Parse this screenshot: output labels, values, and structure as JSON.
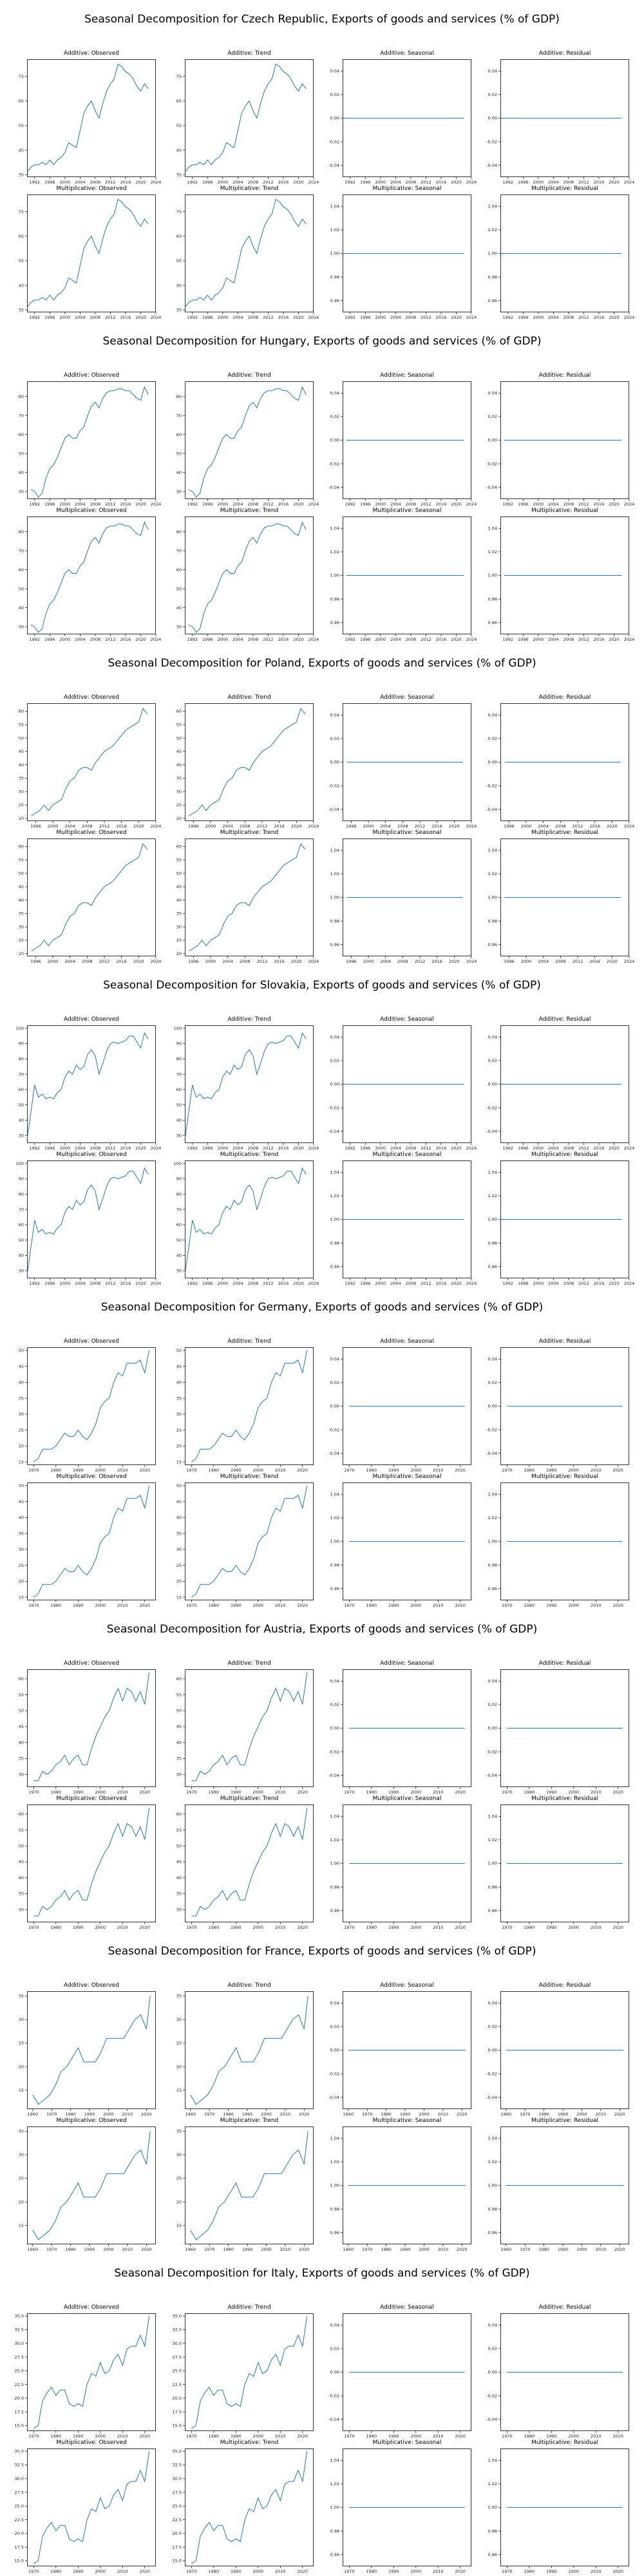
{
  "colors": {
    "line": "#1f77b4",
    "axis": "#000000"
  },
  "panel_titles": [
    "Additive: Observed",
    "Additive: Trend",
    "Additive: Seasonal",
    "Additive: Residual",
    "Multiplicative: Observed",
    "Multiplicative: Trend",
    "Multiplicative: Seasonal",
    "Multiplicative: Residual"
  ],
  "chart_data": [
    {
      "type": "line",
      "title": "Seasonal Decomposition for Czech Republic, Exports of goods and services (% of GDP)",
      "x": [
        1990,
        1991,
        1992,
        1993,
        1994,
        1995,
        1996,
        1997,
        1998,
        1999,
        2000,
        2001,
        2002,
        2003,
        2004,
        2005,
        2006,
        2007,
        2008,
        2009,
        2010,
        2011,
        2012,
        2013,
        2014,
        2015,
        2016,
        2017,
        2018,
        2019,
        2020,
        2021,
        2022
      ],
      "observed": [
        36,
        38,
        39,
        39,
        40,
        39,
        41,
        39,
        41,
        42,
        44,
        48,
        47,
        46,
        53,
        60,
        63,
        65,
        61,
        58,
        64,
        69,
        72,
        74,
        80,
        79,
        77,
        76,
        74,
        71,
        69,
        72,
        70
      ],
      "xticks": [
        "1992",
        "1996",
        "2000",
        "2004",
        "2008",
        "2012",
        "2016",
        "2020",
        "2024"
      ],
      "xlim": [
        1990,
        2024
      ],
      "obs_ylim": [
        34,
        82
      ],
      "obs_yticks": [
        "35",
        "45",
        "55",
        "65",
        "75"
      ],
      "yticks_seasonal_add": [
        "0.04",
        "0.02",
        "0.00",
        "-0.02",
        "-0.04"
      ],
      "yticks_seasonal_mul": [
        "1.04",
        "1.02",
        "1.00",
        "0.98",
        "0.96"
      ]
    },
    {
      "type": "line",
      "title": "Seasonal Decomposition for Hungary, Exports of goods and services (% of GDP)",
      "x": [
        1991,
        1992,
        1993,
        1994,
        1995,
        1996,
        1997,
        1998,
        1999,
        2000,
        2001,
        2002,
        2003,
        2004,
        2005,
        2006,
        2007,
        2008,
        2009,
        2010,
        2011,
        2012,
        2013,
        2014,
        2015,
        2016,
        2017,
        2018,
        2019,
        2020,
        2021,
        2022
      ],
      "observed": [
        31,
        30,
        27,
        29,
        37,
        42,
        44,
        48,
        53,
        58,
        60,
        58,
        58,
        62,
        64,
        70,
        75,
        77,
        74,
        79,
        82,
        83,
        83,
        84,
        84,
        83,
        83,
        81,
        79,
        78,
        85,
        81
      ],
      "xticks": [
        "1992",
        "1996",
        "2000",
        "2004",
        "2008",
        "2012",
        "2016",
        "2020",
        "2024"
      ],
      "xlim": [
        1990,
        2024
      ],
      "obs_ylim": [
        26,
        88
      ],
      "obs_yticks": [
        "30",
        "40",
        "50",
        "60",
        "70",
        "80"
      ],
      "yticks_seasonal_add": [
        "0.04",
        "0.02",
        "0.00",
        "-0.02",
        "-0.04"
      ],
      "yticks_seasonal_mul": [
        "1.04",
        "1.02",
        "1.00",
        "0.98",
        "0.96"
      ]
    },
    {
      "type": "line",
      "title": "Seasonal Decomposition for Poland, Exports of goods and services (% of GDP)",
      "x": [
        1995,
        1996,
        1997,
        1998,
        1999,
        2000,
        2001,
        2002,
        2003,
        2004,
        2005,
        2006,
        2007,
        2008,
        2009,
        2010,
        2011,
        2012,
        2013,
        2014,
        2015,
        2016,
        2017,
        2018,
        2019,
        2020,
        2021,
        2022
      ],
      "observed": [
        21,
        22,
        23,
        25,
        23,
        25,
        26,
        27,
        31,
        34,
        35,
        38,
        39,
        39,
        38,
        41,
        43,
        45,
        46,
        47,
        49,
        51,
        53,
        54,
        55,
        56,
        61,
        59
      ],
      "xticks": [
        "1996",
        "2000",
        "2004",
        "2008",
        "2012",
        "2016",
        "2020",
        "2024"
      ],
      "xlim": [
        1994,
        2024
      ],
      "obs_ylim": [
        19,
        63
      ],
      "obs_yticks": [
        "20",
        "25",
        "30",
        "35",
        "40",
        "45",
        "50",
        "55",
        "60"
      ],
      "yticks_seasonal_add": [
        "0.04",
        "0.02",
        "0.00",
        "-0.02",
        "-0.04"
      ],
      "yticks_seasonal_mul": [
        "1.04",
        "1.02",
        "1.00",
        "0.98",
        "0.96"
      ]
    },
    {
      "type": "line",
      "title": "Seasonal Decomposition for Slovakia, Exports of goods and services (% of GDP)",
      "x": [
        1990,
        1991,
        1992,
        1993,
        1994,
        1995,
        1996,
        1997,
        1998,
        1999,
        2000,
        2001,
        2002,
        2003,
        2004,
        2005,
        2006,
        2007,
        2008,
        2009,
        2010,
        2011,
        2012,
        2013,
        2014,
        2015,
        2016,
        2017,
        2018,
        2019,
        2020,
        2021,
        2022
      ],
      "observed": [
        27,
        45,
        63,
        55,
        57,
        54,
        55,
        54,
        58,
        60,
        68,
        72,
        70,
        76,
        73,
        75,
        83,
        86,
        82,
        70,
        77,
        85,
        90,
        91,
        90,
        91,
        92,
        95,
        95,
        91,
        87,
        97,
        93
      ],
      "xticks": [
        "1992",
        "1996",
        "2000",
        "2004",
        "2008",
        "2012",
        "2016",
        "2020",
        "2024"
      ],
      "xlim": [
        1990,
        2024
      ],
      "obs_ylim": [
        25,
        102
      ],
      "obs_yticks": [
        "30",
        "40",
        "50",
        "60",
        "70",
        "80",
        "90",
        "100"
      ],
      "yticks_seasonal_add": [
        "0.04",
        "0.02",
        "0.00",
        "-0.02",
        "-0.04"
      ],
      "yticks_seasonal_mul": [
        "1.04",
        "1.02",
        "1.00",
        "0.98",
        "0.96"
      ]
    },
    {
      "type": "line",
      "title": "Seasonal Decomposition for Germany, Exports of goods and services (% of GDP)",
      "x": [
        1970,
        1972,
        1974,
        1976,
        1978,
        1980,
        1982,
        1984,
        1986,
        1988,
        1990,
        1992,
        1994,
        1996,
        1998,
        2000,
        2002,
        2004,
        2006,
        2008,
        2010,
        2012,
        2014,
        2016,
        2018,
        2020,
        2022
      ],
      "observed": [
        15,
        16,
        19,
        19,
        19,
        20,
        22,
        24,
        23,
        23,
        25,
        23,
        22,
        24,
        27,
        32,
        34,
        35,
        40,
        43,
        42,
        46,
        46,
        46,
        47,
        43,
        50
      ],
      "xticks": [
        "1970",
        "1980",
        "1990",
        "2000",
        "2010",
        "2020"
      ],
      "xlim": [
        1967,
        2025
      ],
      "obs_ylim": [
        14,
        51
      ],
      "obs_yticks": [
        "15",
        "20",
        "25",
        "30",
        "35",
        "40",
        "45",
        "50"
      ],
      "yticks_seasonal_add": [
        "0.04",
        "0.02",
        "0.00",
        "-0.02",
        "-0.04"
      ],
      "yticks_seasonal_mul": [
        "1.04",
        "1.02",
        "1.00",
        "0.98",
        "0.96"
      ]
    },
    {
      "type": "line",
      "title": "Seasonal Decomposition for Austria, Exports of goods and services (% of GDP)",
      "x": [
        1970,
        1972,
        1974,
        1976,
        1978,
        1980,
        1982,
        1984,
        1986,
        1988,
        1990,
        1992,
        1994,
        1996,
        1998,
        2000,
        2002,
        2004,
        2006,
        2008,
        2010,
        2012,
        2014,
        2016,
        2018,
        2020,
        2022
      ],
      "observed": [
        28,
        28,
        31,
        30,
        31,
        33,
        34,
        36,
        33,
        35,
        36,
        33,
        33,
        38,
        42,
        45,
        48,
        50,
        54,
        57,
        53,
        57,
        56,
        53,
        56,
        52,
        62
      ],
      "xticks": [
        "1970",
        "1980",
        "1990",
        "2000",
        "2010",
        "2020"
      ],
      "xlim": [
        1967,
        2025
      ],
      "obs_ylim": [
        26,
        63
      ],
      "obs_yticks": [
        "30",
        "35",
        "40",
        "45",
        "50",
        "55",
        "60"
      ],
      "yticks_seasonal_add": [
        "0.04",
        "0.02",
        "0.00",
        "-0.02",
        "-0.04"
      ],
      "yticks_seasonal_mul": [
        "1.04",
        "1.02",
        "1.00",
        "0.98",
        "0.96"
      ]
    },
    {
      "type": "line",
      "title": "Seasonal Decomposition for France, Exports of goods and services (% of GDP)",
      "x": [
        1960,
        1963,
        1966,
        1969,
        1972,
        1975,
        1978,
        1981,
        1984,
        1987,
        1990,
        1993,
        1996,
        1999,
        2002,
        2005,
        2008,
        2011,
        2014,
        2017,
        2020,
        2022
      ],
      "observed": [
        14,
        12,
        13,
        14,
        16,
        19,
        20,
        22,
        24,
        21,
        21,
        21,
        23,
        26,
        26,
        26,
        26,
        28,
        30,
        31,
        28,
        35
      ],
      "xticks": [
        "1960",
        "1970",
        "1980",
        "1990",
        "2000",
        "2010",
        "2020"
      ],
      "xlim": [
        1957,
        2025
      ],
      "obs_ylim": [
        11,
        36
      ],
      "obs_yticks": [
        "15",
        "20",
        "25",
        "30",
        "35"
      ],
      "yticks_seasonal_add": [
        "0.04",
        "0.02",
        "0.00",
        "-0.02",
        "-0.04"
      ],
      "yticks_seasonal_mul": [
        "1.04",
        "1.02",
        "1.00",
        "0.98",
        "0.96"
      ]
    },
    {
      "type": "line",
      "title": "Seasonal Decomposition for Italy, Exports of goods and services (% of GDP)",
      "x": [
        1970,
        1972,
        1974,
        1976,
        1978,
        1980,
        1982,
        1984,
        1986,
        1988,
        1990,
        1992,
        1994,
        1996,
        1998,
        2000,
        2002,
        2004,
        2006,
        2008,
        2010,
        2012,
        2014,
        2016,
        2018,
        2020,
        2022
      ],
      "observed": [
        14.5,
        15,
        19.5,
        21,
        22,
        20.5,
        21.5,
        21.5,
        19,
        18.5,
        19,
        18.5,
        22.5,
        24.5,
        24,
        26.5,
        24.5,
        25,
        27,
        28,
        26,
        29,
        29.5,
        29.5,
        31.5,
        29.5,
        35
      ],
      "xticks": [
        "1970",
        "1980",
        "1990",
        "2000",
        "2010",
        "2020"
      ],
      "xlim": [
        1967,
        2025
      ],
      "obs_ylim": [
        14,
        35.5
      ],
      "obs_yticks": [
        "15.0",
        "17.5",
        "20.0",
        "22.5",
        "25.0",
        "27.5",
        "30.0",
        "32.5",
        "35.0"
      ],
      "yticks_seasonal_add": [
        "0.04",
        "0.02",
        "0.00",
        "-0.02",
        "-0.04"
      ],
      "yticks_seasonal_mul": [
        "1.04",
        "1.02",
        "1.00",
        "0.98",
        "0.96"
      ]
    }
  ]
}
